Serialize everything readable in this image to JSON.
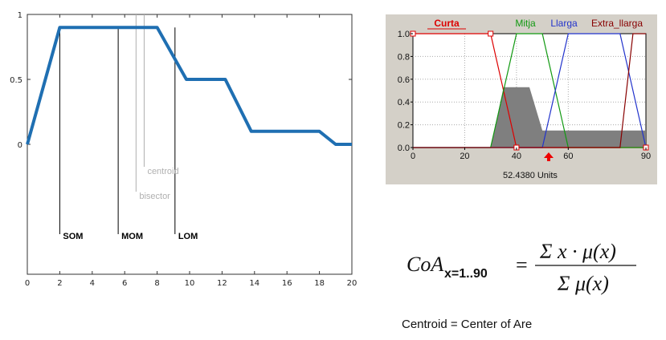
{
  "chart_data": [
    {
      "type": "line",
      "xlim": [
        0,
        20
      ],
      "ylim": [
        -1.1,
        1.05
      ],
      "x_ticks": [
        "0",
        "2",
        "4",
        "6",
        "8",
        "10",
        "12",
        "14",
        "16",
        "18",
        "20"
      ],
      "y_ticks": [
        {
          "v": 1,
          "label": "1"
        },
        {
          "v": 0.5,
          "label": "0.5"
        },
        {
          "v": 0,
          "label": "0"
        }
      ],
      "series": [
        {
          "color": "#1f6fb2",
          "points": [
            [
              0,
              0
            ],
            [
              2,
              0.9
            ],
            [
              8,
              0.9
            ],
            [
              9.8,
              0.5
            ],
            [
              12.2,
              0.5
            ],
            [
              13.8,
              0.1
            ],
            [
              18,
              0.1
            ],
            [
              19,
              0
            ],
            [
              20,
              0
            ]
          ]
        }
      ],
      "markers": [
        {
          "name": "SOM",
          "x": 2,
          "label": "SOM",
          "color": "#000000"
        },
        {
          "name": "MOM",
          "x": 5.6,
          "label": "MOM",
          "color": "#000000"
        },
        {
          "name": "LOM",
          "x": 9.1,
          "label": "LOM",
          "color": "#000000"
        },
        {
          "name": "centroid",
          "x": 7.2,
          "label": "centroid",
          "color": "#b0b0b0"
        },
        {
          "name": "bisector",
          "x": 6.7,
          "label": "bisector",
          "color": "#b0b0b0"
        }
      ]
    },
    {
      "type": "line",
      "xlim": [
        0,
        90
      ],
      "ylim": [
        0,
        1
      ],
      "x_ticks": [
        "0",
        "20",
        "40",
        "60",
        "90"
      ],
      "y_ticks": [
        "0.0",
        "0.2",
        "0.4",
        "0.6",
        "0.8",
        "1.0"
      ],
      "legend": [
        {
          "label": "Curta",
          "color": "#dd0000"
        },
        {
          "label": "Mitja",
          "color": "#119911"
        },
        {
          "label": "Llarga",
          "color": "#2233cc"
        },
        {
          "label": "Extra_llarga",
          "color": "#880000"
        }
      ],
      "series": [
        {
          "name": "Curta",
          "color": "#dd0000",
          "points": [
            [
              0,
              1
            ],
            [
              30,
              1
            ],
            [
              40,
              0
            ],
            [
              90,
              0
            ]
          ]
        },
        {
          "name": "Mitja",
          "color": "#119911",
          "points": [
            [
              0,
              0
            ],
            [
              30,
              0
            ],
            [
              40,
              1
            ],
            [
              50,
              1
            ],
            [
              60,
              0
            ],
            [
              90,
              0
            ]
          ]
        },
        {
          "name": "Llarga",
          "color": "#2233cc",
          "points": [
            [
              0,
              0
            ],
            [
              50,
              0
            ],
            [
              60,
              1
            ],
            [
              80,
              1
            ],
            [
              90,
              0
            ]
          ]
        },
        {
          "name": "Extra_llarga",
          "color": "#880000",
          "points": [
            [
              0,
              0
            ],
            [
              80,
              0
            ],
            [
              85,
              1
            ],
            [
              90,
              1
            ]
          ]
        }
      ],
      "fill": {
        "color": "#7f7f7f",
        "points": [
          [
            30,
            0
          ],
          [
            35,
            0.53
          ],
          [
            45,
            0.53
          ],
          [
            50,
            0.15
          ],
          [
            59,
            0.15
          ],
          [
            59,
            0.15
          ],
          [
            90,
            0.15
          ],
          [
            90,
            0
          ],
          [
            30,
            0
          ]
        ]
      },
      "output_value": 52.438,
      "readout": "52.4380 Units"
    }
  ],
  "formula": {
    "lhs": "CoA",
    "subscript": "x=1..90",
    "numerator": "Σ x · μ(x)",
    "denominator": "Σ μ(x)"
  },
  "caption": "Centroid = Center of Are"
}
